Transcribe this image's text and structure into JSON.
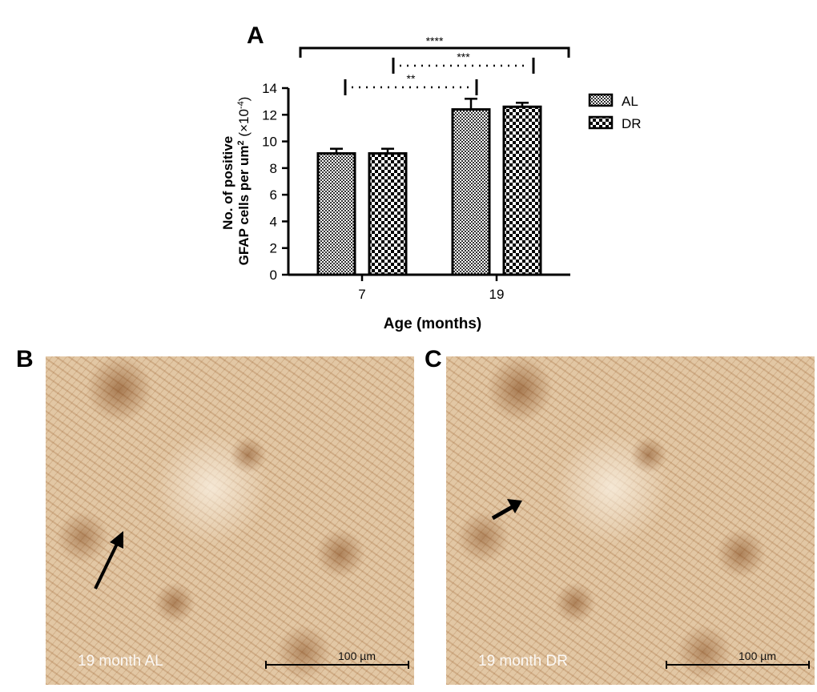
{
  "panels": {
    "a": "A",
    "b": "B",
    "c": "C"
  },
  "chart_data": {
    "type": "bar",
    "categories": [
      "7",
      "19"
    ],
    "series": [
      {
        "name": "AL",
        "values": [
          9.1,
          12.4
        ],
        "errors": [
          0.35,
          0.8
        ],
        "pattern": "fine-checker"
      },
      {
        "name": "DR",
        "values": [
          9.1,
          12.6
        ],
        "errors": [
          0.35,
          0.3
        ],
        "pattern": "coarse-checker"
      }
    ],
    "xlabel": "Age (months)",
    "ylabel_line1": "No. of positive",
    "ylabel_line2": "GFAP cells per um",
    "ylabel_sup": "2",
    "ylabel_unit": "(×10",
    "ylabel_unit_sup": "-4",
    "ylabel_unit_end": ")",
    "ylim": [
      0,
      14
    ],
    "yticks": [
      "0",
      "2",
      "4",
      "6",
      "8",
      "10",
      "12",
      "14"
    ],
    "legend": "right",
    "significance": [
      {
        "label": "****",
        "from": "7 AL",
        "to": "19 DR",
        "style": "solid"
      },
      {
        "label": "***",
        "from": "7 DR",
        "to": "19 DR",
        "style": "dotted"
      },
      {
        "label": "**",
        "from": "7 AL",
        "to": "19 AL",
        "style": "dotted"
      }
    ]
  },
  "micrographs": [
    {
      "label": "19 month AL",
      "scale": "100 µm"
    },
    {
      "label": "19 month DR",
      "scale": "100 µm"
    }
  ]
}
